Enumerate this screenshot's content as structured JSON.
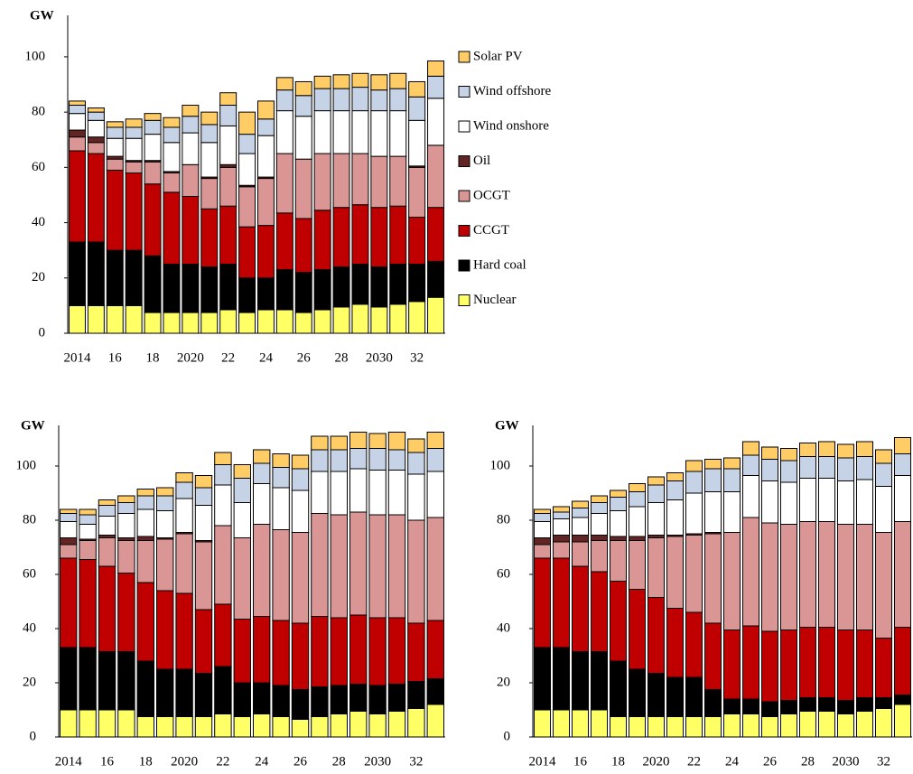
{
  "chart_data": [
    {
      "type": "stacked_bar",
      "y_label": "GW",
      "categories": [
        "2014",
        null,
        "16",
        null,
        "18",
        null,
        "2020",
        null,
        "22",
        null,
        "24",
        null,
        "26",
        null,
        "28",
        null,
        "2030",
        null,
        "32",
        null
      ],
      "ylim": [
        0,
        115
      ],
      "yticks": [
        0,
        20,
        40,
        60,
        80,
        100
      ],
      "legend": "right",
      "series": [
        {
          "name": "Nuclear",
          "color": "#ffff66",
          "values": [
            10,
            10,
            10,
            10,
            7.5,
            7.5,
            7.5,
            7.5,
            8.5,
            7.5,
            8.5,
            8.5,
            7.5,
            8.5,
            9.5,
            10.5,
            9.5,
            10.5,
            11.5,
            13
          ]
        },
        {
          "name": "Hard coal",
          "color": "#000000",
          "values": [
            23,
            23,
            20,
            20,
            20.5,
            17.5,
            17.5,
            16.5,
            16.5,
            12.5,
            11.5,
            14.5,
            14.5,
            14.5,
            14.5,
            14.5,
            14.5,
            14.5,
            13.5,
            13
          ]
        },
        {
          "name": "CCGT",
          "color": "#c00000",
          "values": [
            33,
            32,
            29,
            28,
            26,
            26,
            24.5,
            21,
            21,
            18.5,
            19,
            20.5,
            19.5,
            21.5,
            21.5,
            21.5,
            21.5,
            21,
            17,
            19.5
          ]
        },
        {
          "name": "OCGT",
          "color": "#d99694",
          "values": [
            5,
            4,
            4,
            4,
            8,
            7,
            11.5,
            11,
            14,
            14.5,
            17,
            21.5,
            21.5,
            20.5,
            19.5,
            18.5,
            18.5,
            18,
            18,
            22.5
          ]
        },
        {
          "name": "Oil",
          "color": "#632523",
          "values": [
            2.5,
            2,
            1,
            0.5,
            0.5,
            0.5,
            0,
            0.5,
            1,
            0.5,
            0.5,
            0,
            0,
            0,
            0,
            0,
            0,
            0,
            0.5,
            0
          ]
        },
        {
          "name": "Wind onshore",
          "color": "#ffffff",
          "values": [
            6,
            6,
            6.5,
            8,
            9.5,
            10.5,
            11.5,
            12.5,
            14,
            11.5,
            15,
            15.5,
            15.5,
            15.5,
            15.5,
            15.5,
            16.5,
            16.5,
            16.5,
            17
          ]
        },
        {
          "name": "Wind offshore",
          "color": "#c6d3e6",
          "values": [
            3,
            3,
            4,
            4,
            5,
            5.5,
            6,
            6.5,
            7.5,
            7,
            6,
            7.5,
            7.5,
            8,
            8,
            8.5,
            7.5,
            8,
            8.5,
            8
          ]
        },
        {
          "name": "Solar PV",
          "color": "#ffcc66",
          "values": [
            1.5,
            1.5,
            2,
            3,
            2.5,
            3.5,
            4,
            4.5,
            4.5,
            8,
            6.5,
            4.5,
            5,
            4.5,
            5,
            5,
            5.5,
            5.5,
            5.5,
            5.5
          ]
        }
      ]
    },
    {
      "type": "stacked_bar",
      "y_label": "GW",
      "categories": [
        "2014",
        null,
        "16",
        null,
        "18",
        null,
        "2020",
        null,
        "22",
        null,
        "24",
        null,
        "26",
        null,
        "28",
        null,
        "2030",
        null,
        "32",
        null
      ],
      "ylim": [
        0,
        115
      ],
      "yticks": [
        0,
        20,
        40,
        60,
        80,
        100
      ],
      "series": [
        {
          "color": "#ffff66",
          "values": [
            10,
            10,
            10,
            10,
            7.5,
            7.5,
            7.5,
            7.5,
            8.5,
            7.5,
            8.5,
            7.5,
            6.5,
            7.5,
            8.5,
            9.5,
            8.5,
            9.5,
            10.5,
            12
          ]
        },
        {
          "color": "#000000",
          "values": [
            23,
            23,
            21.5,
            21.5,
            20.5,
            17.5,
            17.5,
            16,
            17.5,
            12.5,
            11.5,
            11.5,
            11,
            11,
            10.5,
            10,
            10.5,
            10,
            10,
            9.5
          ]
        },
        {
          "color": "#c00000",
          "values": [
            33,
            32.5,
            31.5,
            29,
            29,
            29,
            28,
            23.5,
            23,
            23.5,
            24.5,
            24,
            24.5,
            26,
            25,
            25.5,
            25,
            24.5,
            21.5,
            21.5
          ]
        },
        {
          "color": "#d99694",
          "values": [
            5,
            7,
            10.5,
            12,
            15.5,
            19,
            22,
            25,
            29,
            30,
            34,
            33.5,
            33.5,
            38,
            38,
            38,
            38,
            38,
            38,
            38
          ]
        },
        {
          "color": "#632523",
          "values": [
            2.5,
            0.5,
            1,
            1,
            1.5,
            0.5,
            0.5,
            0.5,
            0,
            0,
            0,
            0,
            0,
            0,
            0,
            0,
            0,
            0,
            0,
            0
          ]
        },
        {
          "color": "#ffffff",
          "values": [
            6,
            5.5,
            7,
            9,
            10,
            10,
            12.5,
            13,
            15,
            13,
            15,
            15.5,
            15.5,
            15.5,
            16,
            16,
            16.5,
            16.5,
            17,
            17
          ]
        },
        {
          "color": "#c6d3e6",
          "values": [
            3,
            3.5,
            4,
            4,
            5,
            5.5,
            6,
            6.5,
            7.5,
            9,
            7.5,
            7.5,
            8,
            8,
            8,
            7.5,
            8,
            7.5,
            8,
            8.5
          ]
        },
        {
          "color": "#ffcc66",
          "values": [
            1.5,
            2,
            2,
            2.5,
            2.5,
            3,
            3.5,
            4.5,
            4.5,
            5,
            5,
            5,
            5,
            5,
            5,
            6,
            5.5,
            6.5,
            5,
            6
          ]
        }
      ]
    },
    {
      "type": "stacked_bar",
      "y_label": "GW",
      "categories": [
        "2014",
        null,
        "16",
        null,
        "18",
        null,
        "2020",
        null,
        "22",
        null,
        "24",
        null,
        "26",
        null,
        "28",
        null,
        "2030",
        null,
        "32",
        null
      ],
      "ylim": [
        0,
        115
      ],
      "yticks": [
        0,
        20,
        40,
        60,
        80,
        100
      ],
      "series": [
        {
          "color": "#ffff66",
          "values": [
            10,
            10,
            10,
            10,
            7.5,
            7.5,
            7.5,
            7.5,
            7.5,
            7.5,
            8.5,
            8.5,
            7.5,
            8.5,
            9.5,
            9.5,
            8.5,
            9.5,
            10.5,
            12
          ]
        },
        {
          "color": "#000000",
          "values": [
            23,
            23,
            21.5,
            21.5,
            20.5,
            17.5,
            16,
            14.5,
            14.5,
            10,
            5.5,
            5.5,
            5.5,
            5,
            5,
            5,
            5,
            5,
            4,
            3.5
          ]
        },
        {
          "color": "#c00000",
          "values": [
            33,
            33,
            31.5,
            29.5,
            29.5,
            29.5,
            28,
            25.5,
            24,
            24.5,
            25.5,
            27,
            26,
            26,
            26,
            26,
            26,
            25,
            22,
            25
          ]
        },
        {
          "color": "#d99694",
          "values": [
            5,
            6,
            9,
            11.5,
            15,
            18,
            22,
            26.5,
            28.5,
            33,
            36,
            40,
            40,
            39,
            39,
            39,
            39,
            39,
            39,
            39
          ]
        },
        {
          "color": "#632523",
          "values": [
            2.5,
            2.5,
            2.5,
            2,
            1.5,
            1.5,
            1,
            0.5,
            0.5,
            0.5,
            0,
            0,
            0,
            0,
            0,
            0,
            0,
            0,
            0,
            0
          ]
        },
        {
          "color": "#ffffff",
          "values": [
            6,
            6,
            6.5,
            8,
            9.5,
            11,
            12,
            13,
            15,
            15,
            15,
            15.5,
            15.5,
            15.5,
            16,
            16,
            16,
            16.5,
            17,
            17
          ]
        },
        {
          "color": "#c6d3e6",
          "values": [
            3,
            2.5,
            3.5,
            4,
            5,
            5.5,
            6.5,
            7,
            8,
            8.5,
            8.5,
            7.5,
            8,
            8,
            8,
            8,
            8.5,
            8.5,
            8.5,
            8
          ]
        },
        {
          "color": "#ffcc66",
          "values": [
            1.5,
            2,
            2.5,
            2.5,
            2.5,
            3,
            3,
            3,
            4,
            3.5,
            4,
            5,
            4.5,
            4.5,
            5,
            5.5,
            5,
            5.5,
            5,
            6
          ]
        }
      ]
    }
  ]
}
